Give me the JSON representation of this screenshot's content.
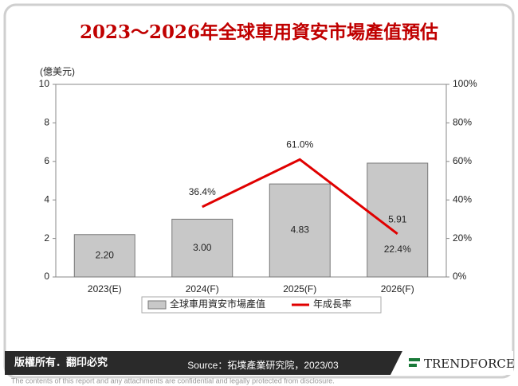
{
  "chart_data": {
    "type": "bar",
    "title": "2023～2026年全球車用資安市場產值預估",
    "y_label": "(億美元)",
    "categories": [
      "2023(E)",
      "2024(F)",
      "2025(F)",
      "2026(F)"
    ],
    "series": [
      {
        "name": "全球車用資安市場產值",
        "type": "bar",
        "color": "#c8c8c8",
        "values": [
          2.2,
          3.0,
          4.83,
          5.91
        ],
        "value_labels": [
          "2.20",
          "3.00",
          "4.83",
          "5.91"
        ]
      },
      {
        "name": "年成長率",
        "type": "line",
        "axis": "y2",
        "color": "#e00000",
        "values": [
          null,
          36.4,
          61.0,
          22.4
        ],
        "value_labels": [
          null,
          "36.4%",
          "61.0%",
          "22.4%"
        ]
      }
    ],
    "ylim": [
      0,
      10
    ],
    "yticks": [
      0,
      2,
      4,
      6,
      8,
      10
    ],
    "y2lim": [
      0,
      100
    ],
    "y2ticks": [
      {
        "value": 0,
        "label": "0%"
      },
      {
        "value": 20,
        "label": "20%"
      },
      {
        "value": 40,
        "label": "40%"
      },
      {
        "value": 60,
        "label": "60%"
      },
      {
        "value": 80,
        "label": "80%"
      },
      {
        "value": 100,
        "label": "100%"
      }
    ]
  },
  "footer": {
    "copyright": "版權所有．翻印必究",
    "source": "Source：拓墣產業研究院，2023/03",
    "logo": "TRENDFORCE",
    "disclaimer": "The contents of this report and any attachments are confidential and legally protected from disclosure."
  }
}
